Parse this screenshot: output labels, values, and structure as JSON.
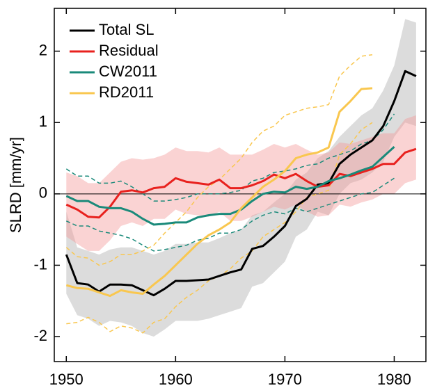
{
  "chart_data": {
    "type": "line",
    "ylabel": "SLRD [mm/yr]",
    "xlim": [
      1948.9,
      1982.9
    ],
    "ylim": [
      -2.35,
      2.6
    ],
    "xticks": [
      1950,
      1960,
      1970,
      1980
    ],
    "yticks": [
      -2,
      -1,
      0,
      1,
      2
    ],
    "zero_line": true,
    "legend": "upper left",
    "series": [
      {
        "name": "Total SL",
        "color": "#000000",
        "band_style": "fill",
        "band_color": "#dcdcdc",
        "x": [
          1950,
          1951,
          1952,
          1953,
          1954,
          1955,
          1956,
          1957,
          1958,
          1959,
          1960,
          1961,
          1962,
          1963,
          1964,
          1965,
          1966,
          1967,
          1968,
          1969,
          1970,
          1971,
          1972,
          1973,
          1974,
          1975,
          1976,
          1977,
          1978,
          1979,
          1980,
          1981,
          1982
        ],
        "values": [
          -0.85,
          -1.25,
          -1.27,
          -1.37,
          -1.27,
          -1.27,
          -1.28,
          -1.35,
          -1.42,
          -1.33,
          -1.22,
          -1.22,
          -1.21,
          -1.2,
          -1.15,
          -1.1,
          -1.06,
          -0.77,
          -0.73,
          -0.6,
          -0.45,
          -0.17,
          -0.07,
          0.13,
          0.15,
          0.42,
          0.55,
          0.65,
          0.75,
          0.95,
          1.3,
          1.72,
          1.65
        ],
        "upper": [
          -0.25,
          -0.75,
          -0.8,
          -0.85,
          -0.78,
          -0.75,
          -0.75,
          -0.8,
          -0.85,
          -0.8,
          -0.7,
          -0.7,
          -0.68,
          -0.68,
          -0.62,
          -0.55,
          -0.5,
          -0.3,
          -0.25,
          -0.12,
          0.0,
          0.2,
          0.3,
          0.5,
          0.6,
          0.8,
          0.95,
          1.1,
          1.2,
          1.45,
          1.8,
          2.45,
          2.4
        ],
        "lower": [
          -1.4,
          -1.7,
          -1.75,
          -1.85,
          -1.78,
          -1.8,
          -1.85,
          -1.95,
          -2.0,
          -1.9,
          -1.78,
          -1.78,
          -1.78,
          -1.75,
          -1.7,
          -1.65,
          -1.6,
          -1.3,
          -1.25,
          -1.1,
          -0.95,
          -0.6,
          -0.5,
          -0.25,
          -0.3,
          0.0,
          0.15,
          0.2,
          0.3,
          0.45,
          0.8,
          1.0,
          0.95
        ]
      },
      {
        "name": "Residual",
        "color": "#e8211e",
        "band_style": "fill",
        "band_color": "rgba(242,150,150,0.42)",
        "x": [
          1950,
          1951,
          1952,
          1953,
          1954,
          1955,
          1956,
          1957,
          1958,
          1959,
          1960,
          1961,
          1962,
          1963,
          1964,
          1965,
          1966,
          1967,
          1968,
          1969,
          1970,
          1971,
          1972,
          1973,
          1974,
          1975,
          1976,
          1977,
          1978,
          1979,
          1980,
          1981,
          1982
        ],
        "values": [
          -0.15,
          -0.22,
          -0.32,
          -0.33,
          -0.18,
          0.03,
          0.05,
          0.02,
          0.08,
          0.1,
          0.22,
          0.17,
          0.15,
          0.13,
          0.2,
          0.08,
          0.08,
          0.12,
          0.18,
          0.27,
          0.22,
          0.28,
          0.18,
          0.1,
          0.12,
          0.28,
          0.25,
          0.3,
          0.35,
          0.42,
          0.42,
          0.58,
          0.63
        ],
        "upper": [
          0.3,
          0.25,
          0.15,
          0.15,
          0.3,
          0.45,
          0.5,
          0.48,
          0.5,
          0.55,
          0.65,
          0.6,
          0.6,
          0.58,
          0.65,
          0.55,
          0.55,
          0.55,
          0.62,
          0.7,
          0.65,
          0.7,
          0.62,
          0.55,
          0.58,
          0.72,
          0.7,
          0.75,
          0.8,
          0.85,
          0.85,
          1.05,
          1.1
        ],
        "lower": [
          -0.6,
          -0.7,
          -0.8,
          -0.8,
          -0.65,
          -0.45,
          -0.4,
          -0.45,
          -0.35,
          -0.35,
          -0.22,
          -0.28,
          -0.3,
          -0.32,
          -0.25,
          -0.38,
          -0.38,
          -0.32,
          -0.25,
          -0.18,
          -0.22,
          -0.15,
          -0.25,
          -0.32,
          -0.3,
          -0.15,
          -0.18,
          -0.12,
          -0.08,
          0.0,
          0.0,
          0.15,
          0.2
        ]
      },
      {
        "name": "CW2011",
        "color": "#1a8a7a",
        "band_style": "dashed",
        "x": [
          1950,
          1951,
          1952,
          1953,
          1954,
          1955,
          1956,
          1957,
          1958,
          1959,
          1960,
          1961,
          1962,
          1963,
          1964,
          1965,
          1966,
          1967,
          1968,
          1969,
          1970,
          1971,
          1972,
          1973,
          1974,
          1975,
          1976,
          1977,
          1978,
          1979,
          1980
        ],
        "values": [
          -0.03,
          -0.1,
          -0.1,
          -0.18,
          -0.2,
          -0.2,
          -0.25,
          -0.35,
          -0.43,
          -0.42,
          -0.4,
          -0.4,
          -0.33,
          -0.3,
          -0.28,
          -0.28,
          -0.22,
          -0.1,
          0.0,
          0.03,
          0.02,
          0.1,
          0.07,
          0.1,
          0.18,
          0.22,
          0.27,
          0.33,
          0.38,
          0.52,
          0.66
        ],
        "upper": [
          0.35,
          0.25,
          0.25,
          0.15,
          0.15,
          0.18,
          0.1,
          0.0,
          -0.1,
          -0.1,
          -0.08,
          -0.05,
          0,
          0,
          0,
          0.02,
          0.05,
          0.18,
          0.22,
          0.3,
          0.32,
          0.35,
          0.4,
          0.42,
          0.5,
          0.55,
          0.6,
          0.7,
          0.75,
          0.9,
          1.12
        ],
        "lower": [
          -0.38,
          -0.45,
          -0.45,
          -0.52,
          -0.55,
          -0.58,
          -0.63,
          -0.72,
          -0.8,
          -0.78,
          -0.75,
          -0.72,
          -0.65,
          -0.62,
          -0.55,
          -0.55,
          -0.5,
          -0.38,
          -0.3,
          -0.25,
          -0.28,
          -0.2,
          -0.25,
          -0.2,
          -0.15,
          -0.1,
          -0.05,
          0,
          0.02,
          0.12,
          0.22
        ]
      },
      {
        "name": "RD2011",
        "color": "#f9c74f",
        "band_style": "dashed",
        "x": [
          1950,
          1951,
          1952,
          1953,
          1954,
          1955,
          1956,
          1957,
          1958,
          1959,
          1960,
          1961,
          1962,
          1963,
          1964,
          1965,
          1966,
          1967,
          1968,
          1969,
          1970,
          1971,
          1972,
          1973,
          1974,
          1975,
          1976,
          1977,
          1978
        ],
        "values": [
          -1.28,
          -1.32,
          -1.33,
          -1.38,
          -1.43,
          -1.35,
          -1.38,
          -1.4,
          -1.27,
          -1.15,
          -1.0,
          -0.85,
          -0.7,
          -0.58,
          -0.5,
          -0.4,
          -0.2,
          -0.05,
          0.1,
          0.2,
          0.32,
          0.5,
          0.55,
          0.58,
          0.65,
          1.15,
          1.3,
          1.47,
          1.48
        ],
        "upper": [
          -0.75,
          -0.88,
          -0.9,
          -1.0,
          -0.95,
          -0.85,
          -0.85,
          -0.8,
          -0.72,
          -0.55,
          -0.4,
          -0.25,
          -0.05,
          0.1,
          0.2,
          0.35,
          0.5,
          0.72,
          0.88,
          0.95,
          1.1,
          1.15,
          1.2,
          1.22,
          1.25,
          1.65,
          1.8,
          1.93,
          1.95
        ],
        "lower": [
          -1.82,
          -1.8,
          -1.73,
          -1.8,
          -1.93,
          -1.85,
          -1.88,
          -1.95,
          -1.8,
          -1.75,
          -1.58,
          -1.45,
          -1.35,
          -1.22,
          -1.15,
          -1.05,
          -0.9,
          -0.8,
          -0.6,
          -0.5,
          -0.4,
          -0.25,
          -0.05,
          0.0,
          0.05,
          0.55,
          0.7,
          0.9,
          1.0
        ]
      }
    ]
  }
}
